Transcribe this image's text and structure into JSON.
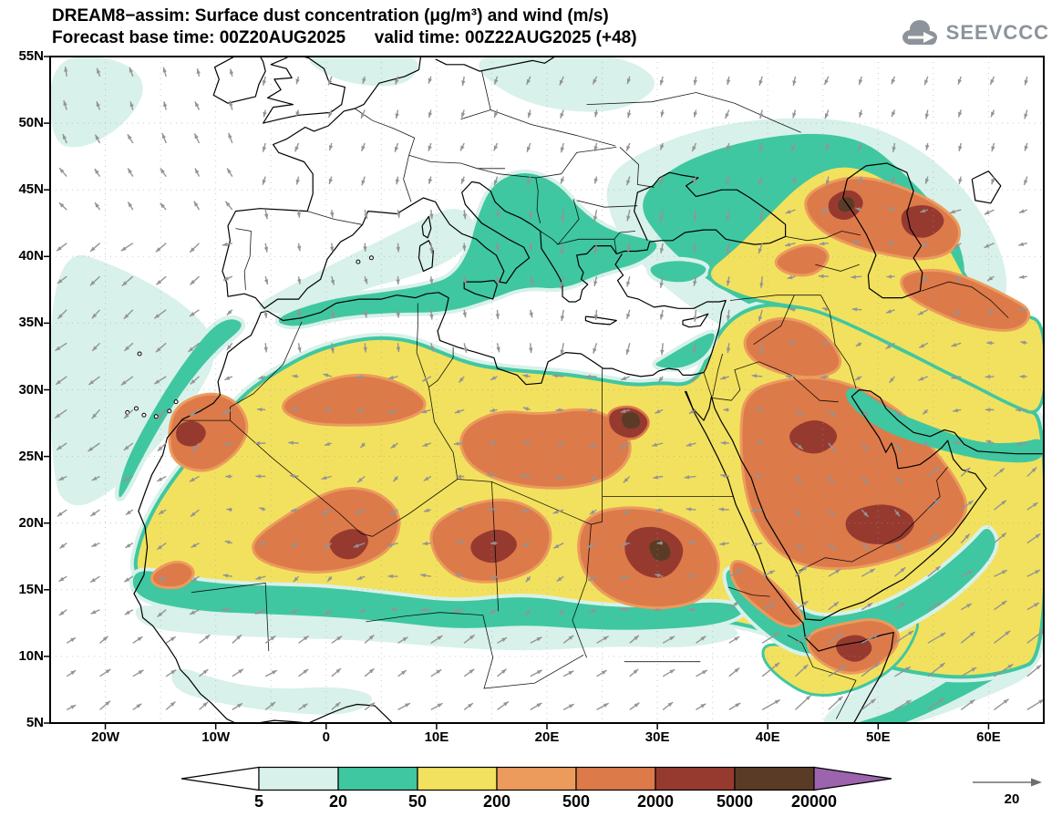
{
  "header": {
    "title": "DREAM8−assim: Surface dust concentration (μg/m³) and wind (m/s)",
    "subtitle": "Forecast base time: 00Z20AUG2025      valid time: 00Z22AUG2025 (+48)"
  },
  "logo": {
    "text": "SEEVCCC"
  },
  "axes": {
    "lat_ticks": [
      "55N",
      "50N",
      "45N",
      "40N",
      "35N",
      "30N",
      "25N",
      "20N",
      "15N",
      "10N",
      "5N"
    ],
    "lon_ticks": [
      "20W",
      "10W",
      "0",
      "10E",
      "20E",
      "30E",
      "40E",
      "50E",
      "60E"
    ]
  },
  "colorbar": {
    "levels": [
      "5",
      "20",
      "50",
      "200",
      "500",
      "2000",
      "5000",
      "20000"
    ],
    "colors": [
      "#ffffff",
      "#d8f1ea",
      "#3fc7a1",
      "#f2e15e",
      "#ec9b5c",
      "#dd7a4a",
      "#963a30",
      "#5a3c26",
      "#9b64ad"
    ]
  },
  "wind_reference": {
    "value": "20",
    "unit": "m/s"
  },
  "chart_data": {
    "type": "heatmap",
    "title": "DREAM8−assim: Surface dust concentration (μg/m³) and wind (m/s)",
    "subtitle": "Forecast base time: 00Z20AUG2025      valid time: 00Z22AUG2025 (+48)",
    "model": "DREAM8-assim",
    "variable": "Surface dust concentration",
    "unit": "μg/m³",
    "projection": "lat-lon",
    "lon_range": [
      -25,
      65
    ],
    "lat_range": [
      5,
      55
    ],
    "lat_tick_values": [
      55,
      50,
      45,
      40,
      35,
      30,
      25,
      20,
      15,
      10,
      5
    ],
    "lon_tick_values": [
      -20,
      -10,
      0,
      10,
      20,
      30,
      40,
      50,
      60
    ],
    "contour_levels_ug_m3": [
      5,
      20,
      50,
      200,
      500,
      2000,
      5000,
      20000
    ],
    "level_colors": [
      "#ffffff",
      "#d8f1ea",
      "#3fc7a1",
      "#f2e15e",
      "#ec9b5c",
      "#dd7a4a",
      "#963a30",
      "#5a3c26",
      "#9b64ad"
    ],
    "grid": "dotted, every 5 degrees",
    "wind": {
      "unit": "m/s",
      "reference_arrow": 20,
      "arrow_color": "#949494",
      "flow_summary": "NE-ward monsoon flow south of 13N and strong Somali jet over the NW Indian Ocean; SW-ward trade winds over the subtropical Atlantic; southward Etesian winds over the Aegean and eastern Mediterranean; weak westward flow over the Sahara interior; NW shamal over Arabia."
    },
    "high_dust_regions": [
      {
        "name": "Morocco / Western Sahara",
        "lat": 26,
        "lon": -11,
        "range_ug_m3": "500–2000"
      },
      {
        "name": "Central Algeria / Mali / Niger",
        "lat": 19,
        "lon": 2,
        "range_ug_m3": "2000–5000"
      },
      {
        "name": "Niger / Chad",
        "lat": 18,
        "lon": 15,
        "range_ug_m3": "2000–5000"
      },
      {
        "name": "Libya / western Egypt",
        "lat": 27.5,
        "lon": 27,
        "range_ug_m3": "2000–5000"
      },
      {
        "name": "Sudan",
        "lat": 18,
        "lon": 30,
        "range_ug_m3": "5000–20000"
      },
      {
        "name": "Arabian Peninsula (Rub' al Khali)",
        "lat": 20,
        "lon": 50,
        "range_ug_m3": "2000–5000"
      },
      {
        "name": "Caucasus / east of Caspian Sea",
        "lat": 43,
        "lon": 47,
        "range_ug_m3": "2000–5000"
      },
      {
        "name": "Horn of Africa",
        "lat": 10.5,
        "lon": 48,
        "range_ug_m3": "2000–5000"
      }
    ],
    "background_regions": "Dust 50–200 μg/m³ (yellow) covers most of the Sahara, Sahel margin, Arabia and Middle East up to the Caspian; 20–50 μg/m³ (green) fringes along the Sahel, Mediterranean coast, Adriatic/Balkans, Black Sea–Caspian region, Red Sea and Horn of Africa; 5–20 μg/m³ (pale cyan) over adjacent Atlantic, Europe and Indian Ocean edges."
  }
}
